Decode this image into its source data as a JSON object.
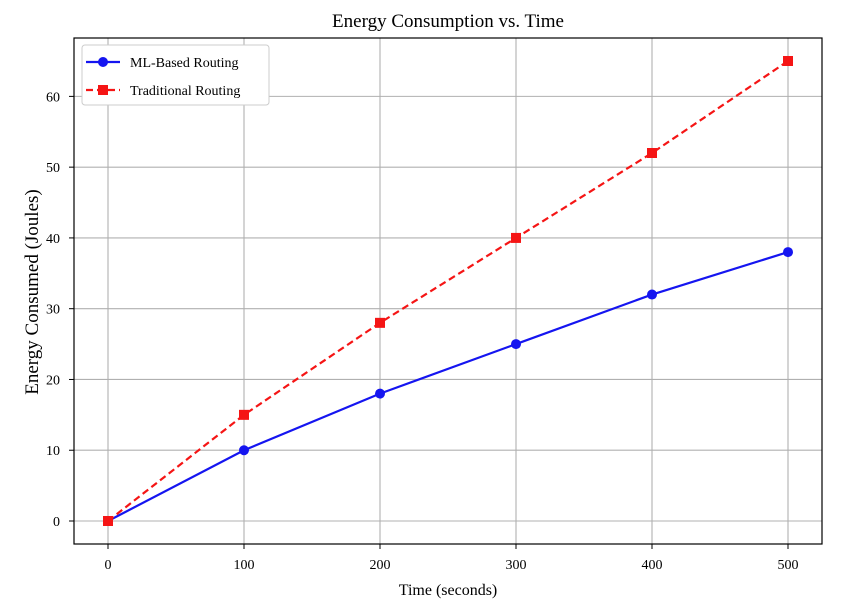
{
  "chart_data": {
    "type": "line",
    "title": "Energy Consumption vs. Time",
    "xlabel": "Time (seconds)",
    "ylabel": "Energy Consumed (Joules)",
    "x": [
      0,
      100,
      200,
      300,
      400,
      500
    ],
    "xlim": [
      -25,
      525
    ],
    "ylim": [
      -3.25,
      68.25
    ],
    "xticks": [
      0,
      100,
      200,
      300,
      400,
      500
    ],
    "yticks": [
      0,
      10,
      20,
      30,
      40,
      50,
      60
    ],
    "grid": true,
    "legend_position": "top-left",
    "series": [
      {
        "name": "ML-Based Routing",
        "values": [
          0,
          10,
          18,
          25,
          32,
          38
        ],
        "color": "#1515f0",
        "line_style": "solid",
        "marker": "circle"
      },
      {
        "name": "Traditional Routing",
        "values": [
          0,
          15,
          28,
          40,
          52,
          65
        ],
        "color": "#f51515",
        "line_style": "dashed",
        "marker": "square"
      }
    ]
  }
}
